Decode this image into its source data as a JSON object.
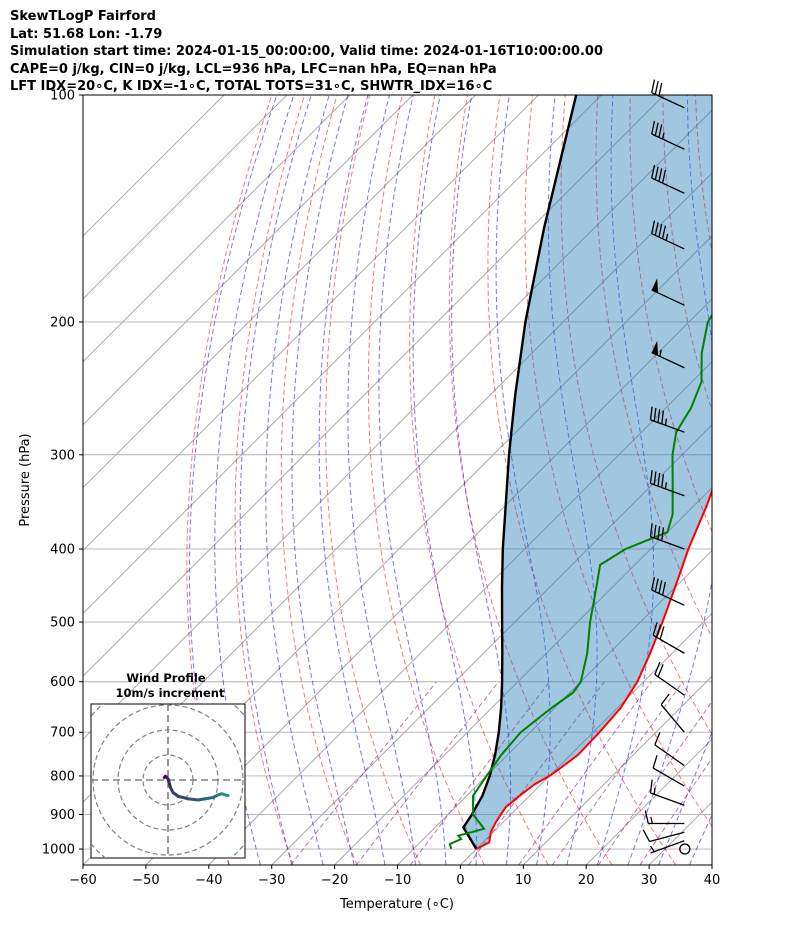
{
  "header": {
    "line1": "SkewTLogP Fairford",
    "line2": "Lat: 51.68   Lon: -1.79",
    "line3": "Simulation start time: 2024-01-15_00:00:00, Valid time: 2024-01-16T10:00:00.00",
    "line4": "CAPE=0 j/kg, CIN=0 j/kg, LCL=936 hPa, LFC=nan hPa, EQ=nan hPa",
    "line5": "LFT IDX=20∘C, K IDX=-1∘C, TOTAL TOTS=31∘C, SHWTR_IDX=16∘C"
  },
  "colors": {
    "temperature": "#ff0000",
    "dewpoint": "#008000",
    "parcel": "#000000",
    "cin_shading": "#1f77b4",
    "dry_adiabat": "#ff0000",
    "moist_adiabat": "#0000ff",
    "mixing_ratio": "#800080",
    "isotherm": "#808080"
  },
  "chart_data": {
    "type": "line",
    "xlabel": "Temperature (∘C)",
    "ylabel": "Pressure (hPa)",
    "xlim": [
      -60,
      40
    ],
    "ylim": [
      1050,
      100
    ],
    "y_scale": "log",
    "grid": true,
    "x_ticks": [
      "−60",
      "−50",
      "−40",
      "−30",
      "−20",
      "−10",
      "0",
      "10",
      "20",
      "30",
      "40"
    ],
    "y_ticks": [
      "1000",
      "900",
      "800",
      "700",
      "600",
      "500",
      "400",
      "300",
      "200",
      "100"
    ],
    "series": [
      {
        "key": "temperature",
        "points": [
          [
            1000,
            0.0
          ],
          [
            980,
            1.0
          ],
          [
            950,
            -0.4
          ],
          [
            920,
            -1.2
          ],
          [
            880,
            -2.0
          ],
          [
            850,
            -1.6
          ],
          [
            820,
            -1.0
          ],
          [
            800,
            0.0
          ],
          [
            780,
            0.5
          ],
          [
            750,
            1.2
          ],
          [
            700,
            1.0
          ],
          [
            650,
            0.5
          ],
          [
            600,
            -1.0
          ],
          [
            550,
            -3.5
          ],
          [
            500,
            -6.5
          ],
          [
            450,
            -10.0
          ],
          [
            400,
            -14.0
          ],
          [
            350,
            -18.0
          ],
          [
            320,
            -21.0
          ],
          [
            300,
            -24.0
          ],
          [
            280,
            -27.0
          ],
          [
            250,
            -31.0
          ],
          [
            220,
            -35.5
          ],
          [
            200,
            -39.5
          ],
          [
            185,
            -42.0
          ],
          [
            175,
            -43.5
          ],
          [
            165,
            -44.5
          ],
          [
            150,
            -46.0
          ],
          [
            135,
            -47.5
          ],
          [
            125,
            -48.5
          ],
          [
            115,
            -49.5
          ],
          [
            105,
            -50.5
          ],
          [
            100,
            -51.0
          ]
        ]
      },
      {
        "key": "dewpoint",
        "points": [
          [
            1000,
            -4.0
          ],
          [
            985,
            -5.0
          ],
          [
            970,
            -4.0
          ],
          [
            960,
            -5.0
          ],
          [
            940,
            -2.0
          ],
          [
            900,
            -6.0
          ],
          [
            850,
            -9.0
          ],
          [
            800,
            -10.0
          ],
          [
            750,
            -11.0
          ],
          [
            700,
            -11.5
          ],
          [
            650,
            -10.5
          ],
          [
            620,
            -9.5
          ],
          [
            600,
            -10.0
          ],
          [
            550,
            -13.5
          ],
          [
            500,
            -18.0
          ],
          [
            450,
            -22.5
          ],
          [
            420,
            -25.5
          ],
          [
            400,
            -24.0
          ],
          [
            380,
            -20.0
          ],
          [
            360,
            -22.0
          ],
          [
            330,
            -26.5
          ],
          [
            300,
            -31.5
          ],
          [
            280,
            -34.5
          ],
          [
            260,
            -36.0
          ],
          [
            240,
            -38.5
          ],
          [
            220,
            -43.0
          ],
          [
            200,
            -47.0
          ],
          [
            180,
            -49.0
          ],
          [
            160,
            -53.0
          ],
          [
            150,
            -54.0
          ],
          [
            140,
            -54.5
          ],
          [
            130,
            -55.0
          ],
          [
            120,
            -56.0
          ],
          [
            110,
            -57.5
          ],
          [
            100,
            -59.0
          ]
        ]
      },
      {
        "key": "parcel",
        "points": [
          [
            1000,
            0.0
          ],
          [
            936,
            -5.5
          ],
          [
            900,
            -6.2
          ],
          [
            850,
            -7.5
          ],
          [
            800,
            -9.5
          ],
          [
            750,
            -12.0
          ],
          [
            700,
            -15.0
          ],
          [
            650,
            -18.5
          ],
          [
            600,
            -22.5
          ],
          [
            550,
            -27.0
          ],
          [
            500,
            -32.0
          ],
          [
            450,
            -37.5
          ],
          [
            400,
            -43.5
          ],
          [
            350,
            -50.0
          ],
          [
            300,
            -57.5
          ],
          [
            250,
            -66.0
          ],
          [
            200,
            -76.0
          ],
          [
            150,
            -88.0
          ],
          [
            100,
            -104.0
          ]
        ]
      }
    ],
    "wind_barbs": [
      {
        "p": 1000,
        "speed_kt": 0,
        "dir_deg": 0,
        "calm": true
      },
      {
        "p": 975,
        "speed_kt": 5,
        "dir_deg": 250
      },
      {
        "p": 950,
        "speed_kt": 10,
        "dir_deg": 255
      },
      {
        "p": 925,
        "speed_kt": 15,
        "dir_deg": 270
      },
      {
        "p": 875,
        "speed_kt": 15,
        "dir_deg": 290
      },
      {
        "p": 825,
        "speed_kt": 10,
        "dir_deg": 300
      },
      {
        "p": 775,
        "speed_kt": 10,
        "dir_deg": 305
      },
      {
        "p": 700,
        "speed_kt": 10,
        "dir_deg": 320
      },
      {
        "p": 625,
        "speed_kt": 20,
        "dir_deg": 305
      },
      {
        "p": 550,
        "speed_kt": 30,
        "dir_deg": 300
      },
      {
        "p": 475,
        "speed_kt": 40,
        "dir_deg": 295
      },
      {
        "p": 400,
        "speed_kt": 40,
        "dir_deg": 290
      },
      {
        "p": 340,
        "speed_kt": 45,
        "dir_deg": 290
      },
      {
        "p": 280,
        "speed_kt": 45,
        "dir_deg": 290
      },
      {
        "p": 230,
        "speed_kt": 55,
        "dir_deg": 295
      },
      {
        "p": 190,
        "speed_kt": 50,
        "dir_deg": 295
      },
      {
        "p": 160,
        "speed_kt": 45,
        "dir_deg": 295
      },
      {
        "p": 135,
        "speed_kt": 40,
        "dir_deg": 295
      },
      {
        "p": 118,
        "speed_kt": 35,
        "dir_deg": 295
      },
      {
        "p": 104,
        "speed_kt": 30,
        "dir_deg": 295
      }
    ],
    "hodograph": {
      "title_line1": "Wind Profile",
      "title_line2": "10m/s increment",
      "ring_increment_ms": 10,
      "rings": 3,
      "points": [
        [
          -1.5,
          1.0
        ],
        [
          -1.0,
          1.5
        ],
        [
          -0.5,
          1.0
        ],
        [
          0.0,
          0.5
        ],
        [
          0.3,
          -0.5
        ],
        [
          1.0,
          -3.0
        ],
        [
          2.0,
          -5.0
        ],
        [
          4.0,
          -6.5
        ],
        [
          8.0,
          -7.5
        ],
        [
          12.0,
          -8.0
        ],
        [
          15.0,
          -7.5
        ],
        [
          18.0,
          -7.0
        ],
        [
          20.0,
          -6.0
        ],
        [
          21.5,
          -5.5
        ],
        [
          23.0,
          -6.0
        ],
        [
          24.0,
          -6.2
        ]
      ]
    }
  }
}
